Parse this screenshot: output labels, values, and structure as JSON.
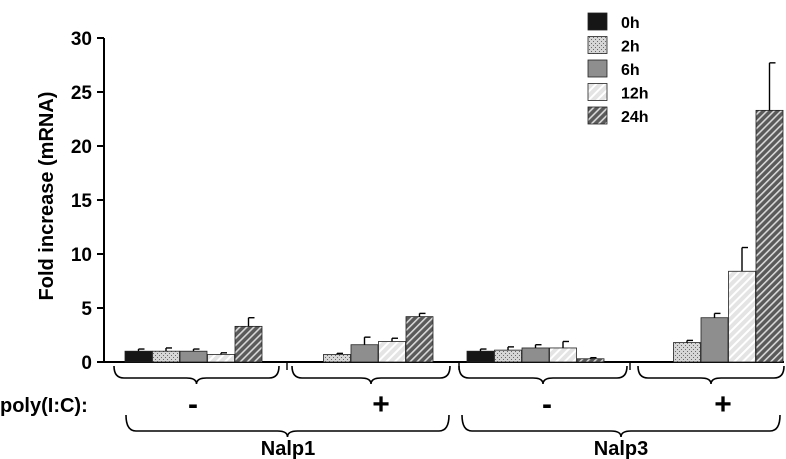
{
  "chart_data": {
    "type": "bar",
    "title": "",
    "ylabel": "Fold increase (mRNA)",
    "ylim": [
      0,
      30
    ],
    "yticks": [
      0,
      5,
      10,
      15,
      20,
      25,
      30
    ],
    "legend_position": "top-right",
    "row_label": "poly(I:C):",
    "genes": [
      "Nalp1",
      "Nalp3"
    ],
    "treatments": [
      "-",
      "+"
    ],
    "groups": [
      {
        "gene": "Nalp1",
        "treatment": "-"
      },
      {
        "gene": "Nalp1",
        "treatment": "+"
      },
      {
        "gene": "Nalp3",
        "treatment": "-"
      },
      {
        "gene": "Nalp3",
        "treatment": "+"
      }
    ],
    "series": [
      {
        "name": "0h",
        "fill": "solid-black",
        "values": [
          1.0,
          null,
          1.0,
          null
        ],
        "errors": [
          0.2,
          null,
          0.2,
          null
        ]
      },
      {
        "name": "2h",
        "fill": "dotted-light",
        "values": [
          1.0,
          0.7,
          1.1,
          1.8
        ],
        "errors": [
          0.3,
          0.1,
          0.3,
          0.2
        ]
      },
      {
        "name": "6h",
        "fill": "solid-gray",
        "values": [
          1.0,
          1.6,
          1.3,
          4.1
        ],
        "errors": [
          0.2,
          0.7,
          0.3,
          0.4
        ]
      },
      {
        "name": "12h",
        "fill": "light-hatch",
        "values": [
          0.7,
          1.9,
          1.3,
          8.4
        ],
        "errors": [
          0.15,
          0.3,
          0.6,
          2.2
        ]
      },
      {
        "name": "24h",
        "fill": "dark-hatch",
        "values": [
          3.3,
          4.2,
          0.3,
          23.3
        ],
        "errors": [
          0.8,
          0.3,
          0.1,
          4.4
        ]
      }
    ]
  }
}
